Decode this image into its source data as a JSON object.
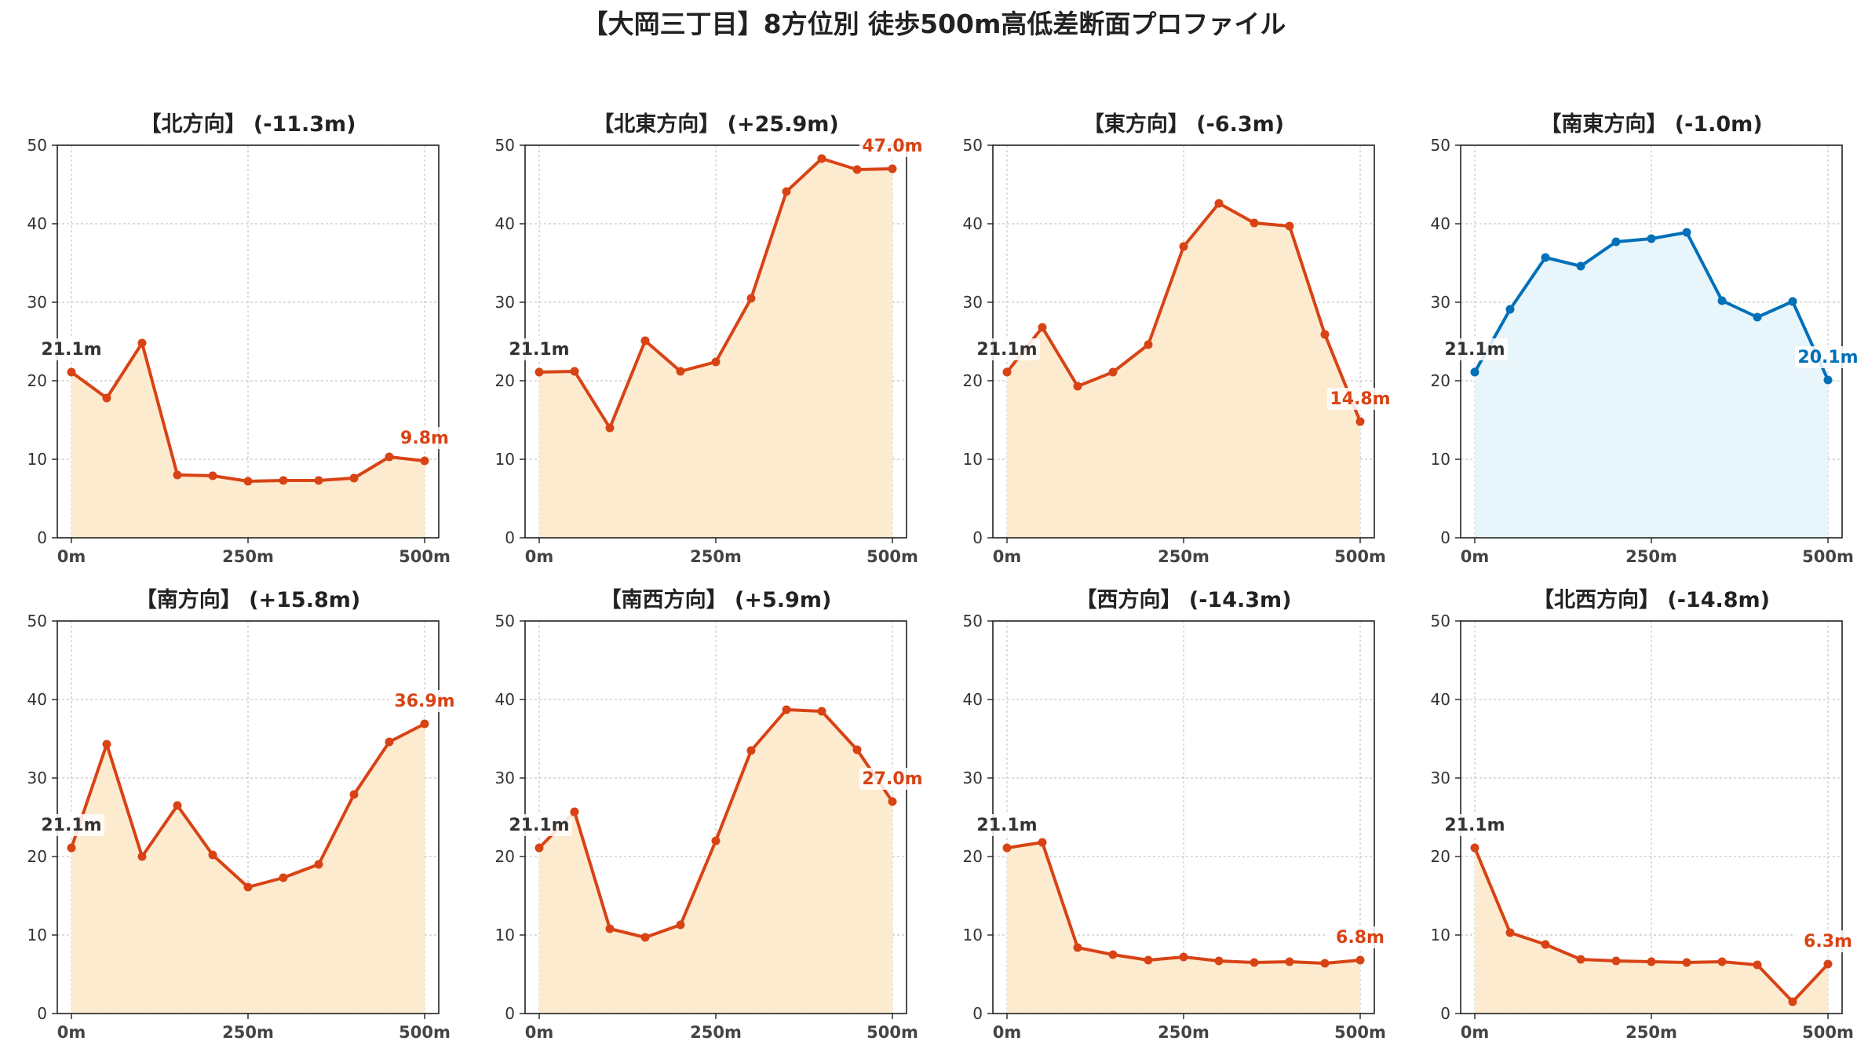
{
  "figure": {
    "title": "【大岡三丁目】8方位別 徒歩500m高低差断面プロファイル"
  },
  "colors": {
    "descent_line": "#d84315",
    "descent_fill": "#fdebd0",
    "flat_line": "#0070b8",
    "flat_fill": "#e8f5fb",
    "start_label": "#333333"
  },
  "chart_data": [
    {
      "type": "area",
      "title": "【北方向】 (-11.3m)",
      "x": [
        0,
        50,
        100,
        150,
        200,
        250,
        300,
        350,
        400,
        450,
        500
      ],
      "y": [
        21.1,
        17.8,
        24.8,
        8.0,
        7.9,
        7.2,
        7.3,
        7.3,
        7.6,
        10.3,
        9.8
      ],
      "xticks": [
        "0m",
        "250m",
        "500m"
      ],
      "yticks": [
        "0",
        "10",
        "20",
        "30",
        "40",
        "50"
      ],
      "ylim": [
        0,
        50
      ],
      "grid": true,
      "start_label": "21.1m",
      "end_label": "9.8m",
      "color_scheme": "descent"
    },
    {
      "type": "area",
      "title": "【北東方向】 (+25.9m)",
      "x": [
        0,
        50,
        100,
        150,
        200,
        250,
        300,
        350,
        400,
        450,
        500
      ],
      "y": [
        21.1,
        21.2,
        14.0,
        25.1,
        21.2,
        22.4,
        30.5,
        44.1,
        48.3,
        46.9,
        47.0
      ],
      "xticks": [
        "0m",
        "250m",
        "500m"
      ],
      "yticks": [
        "0",
        "10",
        "20",
        "30",
        "40",
        "50"
      ],
      "ylim": [
        0,
        50
      ],
      "grid": true,
      "start_label": "21.1m",
      "end_label": "47.0m",
      "color_scheme": "descent"
    },
    {
      "type": "area",
      "title": "【東方向】 (-6.3m)",
      "x": [
        0,
        50,
        100,
        150,
        200,
        250,
        300,
        350,
        400,
        450,
        500
      ],
      "y": [
        21.1,
        26.8,
        19.3,
        21.1,
        24.6,
        37.1,
        42.6,
        40.1,
        39.7,
        25.9,
        14.8
      ],
      "xticks": [
        "0m",
        "250m",
        "500m"
      ],
      "yticks": [
        "0",
        "10",
        "20",
        "30",
        "40",
        "50"
      ],
      "ylim": [
        0,
        50
      ],
      "grid": true,
      "start_label": "21.1m",
      "end_label": "14.8m",
      "color_scheme": "descent"
    },
    {
      "type": "area",
      "title": "【南東方向】 (-1.0m)",
      "x": [
        0,
        50,
        100,
        150,
        200,
        250,
        300,
        350,
        400,
        450,
        500
      ],
      "y": [
        21.1,
        29.1,
        35.7,
        34.6,
        37.7,
        38.1,
        38.9,
        30.2,
        28.1,
        30.1,
        20.1
      ],
      "xticks": [
        "0m",
        "250m",
        "500m"
      ],
      "yticks": [
        "0",
        "10",
        "20",
        "30",
        "40",
        "50"
      ],
      "ylim": [
        0,
        50
      ],
      "grid": true,
      "start_label": "21.1m",
      "end_label": "20.1m",
      "color_scheme": "flat"
    },
    {
      "type": "area",
      "title": "【南方向】 (+15.8m)",
      "x": [
        0,
        50,
        100,
        150,
        200,
        250,
        300,
        350,
        400,
        450,
        500
      ],
      "y": [
        21.1,
        34.3,
        20.0,
        26.5,
        20.2,
        16.1,
        17.3,
        19.0,
        27.9,
        34.6,
        36.9
      ],
      "xticks": [
        "0m",
        "250m",
        "500m"
      ],
      "yticks": [
        "0",
        "10",
        "20",
        "30",
        "40",
        "50"
      ],
      "ylim": [
        0,
        50
      ],
      "grid": true,
      "start_label": "21.1m",
      "end_label": "36.9m",
      "color_scheme": "descent"
    },
    {
      "type": "area",
      "title": "【南西方向】 (+5.9m)",
      "x": [
        0,
        50,
        100,
        150,
        200,
        250,
        300,
        350,
        400,
        450,
        500
      ],
      "y": [
        21.1,
        25.7,
        10.8,
        9.7,
        11.3,
        22.0,
        33.5,
        38.7,
        38.5,
        33.6,
        27.0
      ],
      "xticks": [
        "0m",
        "250m",
        "500m"
      ],
      "yticks": [
        "0",
        "10",
        "20",
        "30",
        "40",
        "50"
      ],
      "ylim": [
        0,
        50
      ],
      "grid": true,
      "start_label": "21.1m",
      "end_label": "27.0m",
      "color_scheme": "descent"
    },
    {
      "type": "area",
      "title": "【西方向】 (-14.3m)",
      "x": [
        0,
        50,
        100,
        150,
        200,
        250,
        300,
        350,
        400,
        450,
        500
      ],
      "y": [
        21.1,
        21.8,
        8.4,
        7.5,
        6.8,
        7.2,
        6.7,
        6.5,
        6.6,
        6.4,
        6.8
      ],
      "xticks": [
        "0m",
        "250m",
        "500m"
      ],
      "yticks": [
        "0",
        "10",
        "20",
        "30",
        "40",
        "50"
      ],
      "ylim": [
        0,
        50
      ],
      "grid": true,
      "start_label": "21.1m",
      "end_label": "6.8m",
      "color_scheme": "descent"
    },
    {
      "type": "area",
      "title": "【北西方向】 (-14.8m)",
      "x": [
        0,
        50,
        100,
        150,
        200,
        250,
        300,
        350,
        400,
        450,
        500
      ],
      "y": [
        21.1,
        10.3,
        8.8,
        6.9,
        6.7,
        6.6,
        6.5,
        6.6,
        6.2,
        1.5,
        6.3
      ],
      "xticks": [
        "0m",
        "250m",
        "500m"
      ],
      "yticks": [
        "0",
        "10",
        "20",
        "30",
        "40",
        "50"
      ],
      "ylim": [
        0,
        50
      ],
      "grid": true,
      "start_label": "21.1m",
      "end_label": "6.3m",
      "color_scheme": "descent"
    }
  ]
}
